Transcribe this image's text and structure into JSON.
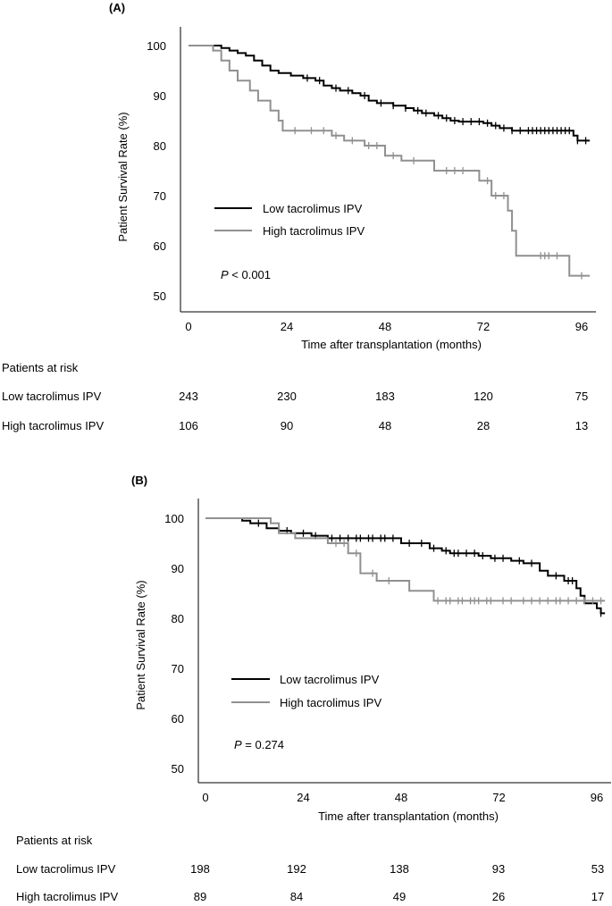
{
  "chart_data": [
    {
      "type": "line",
      "panel_label": "(A)",
      "xlabel": "Time after transplantation (months)",
      "ylabel": "Patient Survival Rate (%)",
      "xlim": [
        0,
        98
      ],
      "ylim": [
        48,
        102
      ],
      "xticks": [
        0,
        24,
        48,
        72,
        96
      ],
      "yticks": [
        50,
        60,
        70,
        80,
        90,
        100
      ],
      "legend": "middle-left",
      "annotation": {
        "p": "P",
        "rest": " < 0.001"
      },
      "series": [
        {
          "name": "Low tacrolimus IPV",
          "color": "#000000",
          "steps": [
            [
              0,
              100
            ],
            [
              8,
              99.5
            ],
            [
              10,
              99
            ],
            [
              12,
              98.5
            ],
            [
              14,
              98
            ],
            [
              16,
              97
            ],
            [
              18,
              96
            ],
            [
              20,
              95
            ],
            [
              22,
              94.5
            ],
            [
              25,
              94
            ],
            [
              28,
              93.5
            ],
            [
              31,
              93
            ],
            [
              33,
              92
            ],
            [
              35,
              91.5
            ],
            [
              37,
              91
            ],
            [
              40,
              90.5
            ],
            [
              42,
              90
            ],
            [
              44,
              89
            ],
            [
              46,
              88.5
            ],
            [
              50,
              88
            ],
            [
              53,
              87.5
            ],
            [
              55,
              87
            ],
            [
              57,
              86.5
            ],
            [
              60,
              86
            ],
            [
              62,
              85.5
            ],
            [
              64,
              85
            ],
            [
              66,
              84.8
            ],
            [
              72,
              84.5
            ],
            [
              74,
              84
            ],
            [
              76,
              83.5
            ],
            [
              79,
              83
            ],
            [
              94,
              82
            ],
            [
              95,
              81
            ]
          ],
          "end": 98,
          "censors": [
            29,
            32,
            36,
            39,
            43,
            47,
            50,
            53,
            56,
            58,
            61,
            63,
            65,
            67,
            69,
            71,
            73,
            75,
            77,
            79,
            81,
            83,
            84,
            85,
            86,
            87,
            88,
            89,
            90,
            91,
            92,
            93,
            95,
            97
          ]
        },
        {
          "name": "High tacrolimus IPV",
          "color": "#909090",
          "steps": [
            [
              0,
              100
            ],
            [
              6,
              99
            ],
            [
              8,
              97
            ],
            [
              10,
              95
            ],
            [
              12,
              93
            ],
            [
              15,
              91
            ],
            [
              17,
              89
            ],
            [
              20,
              87
            ],
            [
              22,
              85
            ],
            [
              23,
              83
            ],
            [
              35,
              82
            ],
            [
              38,
              81
            ],
            [
              43,
              80
            ],
            [
              48,
              78
            ],
            [
              52,
              77
            ],
            [
              60,
              75
            ],
            [
              71,
              73
            ],
            [
              74,
              70
            ],
            [
              78,
              67
            ],
            [
              79,
              63
            ],
            [
              80,
              58
            ],
            [
              93,
              54
            ]
          ],
          "end": 98,
          "censors": [
            26,
            30,
            33,
            36,
            40,
            44,
            46,
            50,
            55,
            63,
            65,
            67,
            73,
            75,
            77,
            86,
            87,
            88,
            90,
            96
          ]
        }
      ],
      "risk_table": {
        "title": "Patients at risk",
        "rows": [
          {
            "label": "Low tacrolimus IPV",
            "values": [
              243,
              230,
              183,
              120,
              75
            ]
          },
          {
            "label": "High tacrolimus IPV",
            "values": [
              106,
              90,
              48,
              28,
              13
            ]
          }
        ]
      }
    },
    {
      "type": "line",
      "panel_label": "(B)",
      "xlabel": "Time after transplantation (months)",
      "ylabel": "Patient Survival Rate (%)",
      "xlim": [
        0,
        98
      ],
      "ylim": [
        48,
        102
      ],
      "xticks": [
        0,
        24,
        48,
        72,
        96
      ],
      "yticks": [
        50,
        60,
        70,
        80,
        90,
        100
      ],
      "legend": "middle-left",
      "annotation": {
        "p": "P",
        "rest": " = 0.274"
      },
      "series": [
        {
          "name": "Low tacrolimus IPV",
          "color": "#000000",
          "steps": [
            [
              0,
              100
            ],
            [
              9,
              99.5
            ],
            [
              11,
              99
            ],
            [
              15,
              98
            ],
            [
              18,
              97.5
            ],
            [
              21,
              97
            ],
            [
              26,
              96.5
            ],
            [
              30,
              96
            ],
            [
              48,
              95
            ],
            [
              55,
              94
            ],
            [
              58,
              93.5
            ],
            [
              60,
              93
            ],
            [
              67,
              92.5
            ],
            [
              70,
              92
            ],
            [
              75,
              91.5
            ],
            [
              78,
              91
            ],
            [
              82,
              89.5
            ],
            [
              84,
              88.5
            ],
            [
              88,
              87.5
            ],
            [
              91,
              86
            ],
            [
              92,
              84.5
            ],
            [
              93,
              83
            ],
            [
              96,
              82
            ],
            [
              97,
              81
            ]
          ],
          "end": 98,
          "censors": [
            13,
            20,
            24,
            27,
            31,
            33,
            35,
            37,
            38,
            40,
            41,
            43,
            44,
            46,
            50,
            53,
            56,
            59,
            61,
            62,
            64,
            66,
            68,
            71,
            73,
            77,
            80,
            86,
            89,
            90,
            97
          ]
        },
        {
          "name": "High tacrolimus IPV",
          "color": "#909090",
          "steps": [
            [
              0,
              100
            ],
            [
              16,
              99
            ],
            [
              18,
              97
            ],
            [
              22,
              96
            ],
            [
              30,
              95
            ],
            [
              35,
              93
            ],
            [
              38,
              89
            ],
            [
              42,
              87.5
            ],
            [
              50,
              85.5
            ],
            [
              56,
              83.5
            ]
          ],
          "end": 98,
          "censors": [
            32,
            34,
            37,
            41,
            45,
            57,
            59,
            60,
            62,
            63,
            65,
            66,
            67,
            69,
            70,
            73,
            75,
            78,
            80,
            82,
            84,
            86,
            87,
            89,
            91,
            93,
            95,
            97
          ]
        }
      ],
      "risk_table": {
        "title": "Patients at risk",
        "rows": [
          {
            "label": "Low tacrolimus IPV",
            "values": [
              198,
              192,
              138,
              93,
              53
            ]
          },
          {
            "label": "High tacrolimus IPV",
            "values": [
              89,
              84,
              49,
              26,
              17
            ]
          }
        ]
      }
    }
  ]
}
